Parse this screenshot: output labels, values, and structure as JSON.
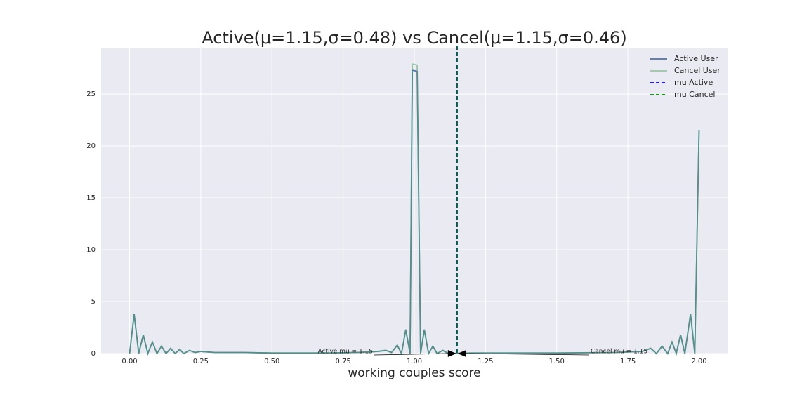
{
  "chart_data": {
    "type": "line",
    "title": "Active(μ=1.15,σ=0.48) vs Cancel(μ=1.15,σ=0.46)",
    "x_label": "working couples score",
    "x": [
      0,
      0.016,
      0.032,
      0.048,
      0.064,
      0.08,
      0.096,
      0.112,
      0.128,
      0.144,
      0.16,
      0.176,
      0.19,
      0.21,
      0.23,
      0.25,
      0.3,
      0.4,
      0.5,
      0.6,
      0.7,
      0.8,
      0.87,
      0.9,
      0.92,
      0.94,
      0.955,
      0.97,
      0.985,
      0.993,
      1.01,
      1.022,
      1.035,
      1.05,
      1.065,
      1.08,
      1.1,
      1.12,
      1.2,
      1.5,
      1.7,
      1.8,
      1.83,
      1.85,
      1.87,
      1.89,
      1.905,
      1.92,
      1.935,
      1.95,
      1.97,
      1.985,
      2.0
    ],
    "series": [
      {
        "name": "Active User",
        "color": "#4c72b0",
        "values": [
          0,
          3.8,
          0,
          1.8,
          0,
          1.1,
          0,
          0.7,
          0,
          0.5,
          0,
          0.4,
          0,
          0.3,
          0.1,
          0.2,
          0.1,
          0.1,
          0.05,
          0.05,
          0.05,
          0.1,
          0.2,
          0.3,
          0.1,
          0.8,
          0,
          2.3,
          0,
          27.3,
          27.2,
          0,
          2.3,
          0,
          0.7,
          0,
          0.3,
          0,
          0.05,
          0.05,
          0.1,
          0.2,
          0.5,
          0,
          0.7,
          0,
          1.1,
          0,
          1.8,
          0,
          3.8,
          0,
          21.5
        ]
      },
      {
        "name": "Cancel User",
        "color": "#55a868",
        "values": [
          0,
          3.8,
          0,
          1.8,
          0,
          1.1,
          0,
          0.7,
          0,
          0.5,
          0,
          0.4,
          0,
          0.3,
          0.1,
          0.2,
          0.1,
          0.1,
          0.05,
          0.05,
          0.05,
          0.1,
          0.2,
          0.3,
          0.1,
          0.8,
          0,
          2.3,
          0,
          27.9,
          27.8,
          0,
          2.3,
          0,
          0.7,
          0,
          0.3,
          0,
          0.05,
          0.05,
          0.1,
          0.2,
          0.5,
          0,
          0.7,
          0,
          1.1,
          0,
          1.8,
          0,
          3.8,
          0,
          21.5
        ]
      }
    ],
    "vlines": [
      {
        "name": "mu Active",
        "color": "#0000ff",
        "value": 1.15,
        "annotation": "Active mu = 1.15"
      },
      {
        "name": "mu Cancel",
        "color": "#008000",
        "value": 1.15,
        "annotation": "Cancel mu = 1.15"
      }
    ],
    "xlim": [
      -0.1,
      2.1
    ],
    "ylim": [
      0,
      29.4
    ],
    "xticks": [
      {
        "value": 0,
        "label": "0.00"
      },
      0.25,
      {
        "value": 0.5,
        "label": "0.50"
      },
      0.75,
      {
        "value": 1,
        "label": "1.00"
      },
      1.25,
      {
        "value": 1.5,
        "label": "1.50"
      },
      1.75,
      {
        "value": 2,
        "label": "2.00"
      }
    ],
    "yticks": [
      0,
      5,
      10,
      15,
      20,
      25
    ],
    "grid": true,
    "legend": "upper right"
  }
}
